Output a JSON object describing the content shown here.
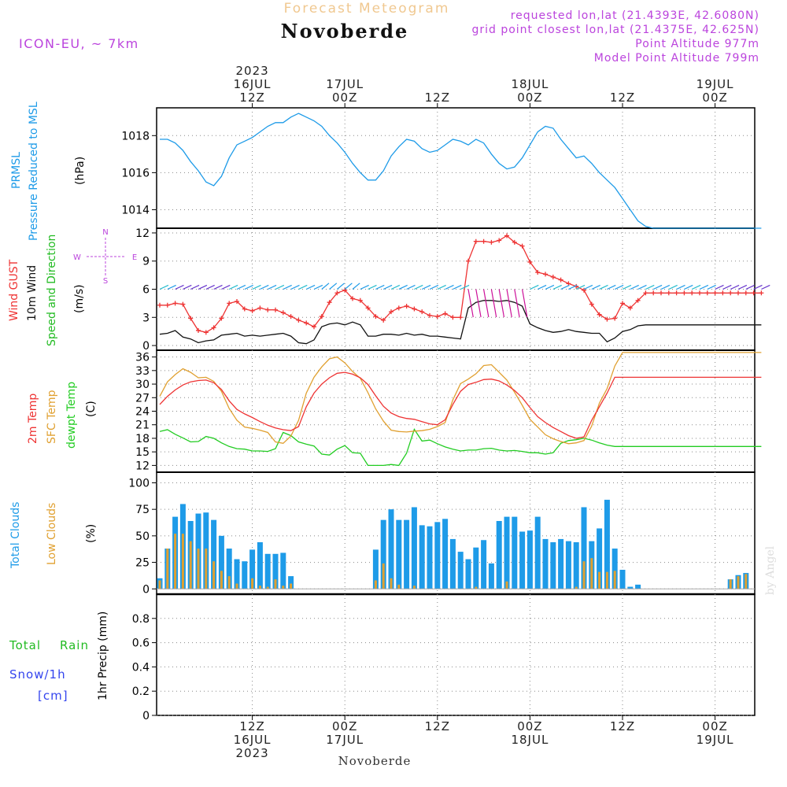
{
  "header": {
    "subtitle": "Forecast Meteogram",
    "title": "Novoberde",
    "model": "ICON-EU, ~ 7km",
    "info": [
      "requested lon,lat (21.4393E, 42.6080N)",
      "grid point closest lon,lat (21.4375E, 42.625N)",
      "Point Altitude 977m",
      "Model Point Altitude 799m"
    ],
    "footer_name": "Novoberde",
    "watermark": "by Angel"
  },
  "colors": {
    "pressure": "#1e9be8",
    "gust": "#ee3333",
    "wind": "#111111",
    "direction": "#22bb22",
    "temp2m": "#ee3333",
    "sfc": "#e0a030",
    "dew": "#22cc22",
    "total_clouds": "#1e9be8",
    "low_clouds": "#e0a030",
    "rain": "#22bb22",
    "snow": "#3344ee",
    "info": "#bb44dd",
    "subtitle": "#f0c890"
  },
  "time_axis": {
    "top_labels": [
      {
        "hour": 12,
        "lines": [
          "2023",
          "16JUL",
          "12Z"
        ]
      },
      {
        "hour": 24,
        "lines": [
          "17JUL",
          "00Z"
        ]
      },
      {
        "hour": 36,
        "lines": [
          "12Z"
        ]
      },
      {
        "hour": 48,
        "lines": [
          "18JUL",
          "00Z"
        ]
      },
      {
        "hour": 60,
        "lines": [
          "12Z"
        ]
      },
      {
        "hour": 72,
        "lines": [
          "19JUL",
          "00Z"
        ]
      }
    ],
    "bottom_labels": [
      {
        "hour": 12,
        "lines": [
          "12Z",
          "16JUL",
          "2023"
        ]
      },
      {
        "hour": 24,
        "lines": [
          "00Z",
          "17JUL"
        ]
      },
      {
        "hour": 36,
        "lines": [
          "12Z"
        ]
      },
      {
        "hour": 48,
        "lines": [
          "00Z",
          "18JUL"
        ]
      },
      {
        "hour": 60,
        "lines": [
          "12Z"
        ]
      },
      {
        "hour": 72,
        "lines": [
          "00Z",
          "19JUL"
        ]
      }
    ]
  },
  "panels": {
    "pressure": {
      "labels": [
        "PRMSL",
        "Pressure Reduced to MSL",
        "(hPa)"
      ],
      "ticks": [
        "1014",
        "1016",
        "1018"
      ]
    },
    "wind": {
      "labels": [
        "Wind GUST",
        "10m Wind",
        "Speed and Direction",
        "(m/s)"
      ],
      "ticks": [
        "0",
        "3",
        "6",
        "9",
        "12"
      ],
      "compass": [
        "N",
        "W",
        "E",
        "S"
      ]
    },
    "temp": {
      "labels": [
        "2m Temp",
        "SFC Temp",
        "dewpt Temp",
        "(C)"
      ],
      "ticks": [
        "12",
        "15",
        "18",
        "21",
        "24",
        "27",
        "30",
        "33",
        "36"
      ]
    },
    "clouds": {
      "labels": [
        "Total Clouds",
        "Low Clouds",
        "(%)"
      ],
      "ticks": [
        "0",
        "25",
        "50",
        "75",
        "100"
      ]
    },
    "precip": {
      "labels": [
        "Total",
        "Rain",
        "Snow/1h",
        "[cm]",
        "1hr Precip (mm)"
      ],
      "ticks": [
        "0",
        "0.2",
        "0.4",
        "0.6",
        "0.8"
      ]
    }
  },
  "chart_data": [
    {
      "type": "line",
      "title": "PRMSL Pressure Reduced to MSL",
      "ylabel": "hPa",
      "ylim": [
        1013,
        1019.5
      ],
      "x_hours": [
        0,
        1,
        2,
        3,
        4,
        5,
        6,
        7,
        8,
        9,
        10,
        11,
        12,
        13,
        14,
        15,
        16,
        17,
        18,
        19,
        20,
        21,
        22,
        23,
        24,
        25,
        26,
        27,
        28,
        29,
        30,
        31,
        32,
        33,
        34,
        35,
        36,
        37,
        38,
        39,
        40,
        41,
        42,
        43,
        44,
        45,
        46,
        47,
        48,
        49,
        50,
        51,
        52,
        53,
        54,
        55,
        56,
        57,
        58,
        59,
        60,
        61,
        62,
        63,
        64,
        65,
        66,
        67,
        68,
        69,
        70,
        71,
        72,
        73,
        74,
        75,
        76,
        77,
        78
      ],
      "series": [
        {
          "values": [
            1017.8,
            1017.8,
            1017.6,
            1017.2,
            1016.6,
            1016.1,
            1015.5,
            1015.3,
            1015.8,
            1016.8,
            1017.5,
            1017.7,
            1017.9,
            1018.2,
            1018.5,
            1018.7,
            1018.7,
            1019.0,
            1019.2,
            1019.0,
            1018.8,
            1018.5,
            1018.0,
            1017.6,
            1017.1,
            1016.5,
            1016.0,
            1015.6,
            1015.6,
            1016.1,
            1016.9,
            1017.4,
            1017.8,
            1017.7,
            1017.3,
            1017.1,
            1017.2,
            1017.5,
            1017.8,
            1017.7,
            1017.5,
            1017.8,
            1017.6,
            1017.0,
            1016.5,
            1016.2,
            1016.3,
            1016.8,
            1017.5,
            1018.2,
            1018.5,
            1018.4,
            1017.8,
            1017.3,
            1016.8,
            1016.9,
            1016.5,
            1016.0,
            1015.6,
            1015.2,
            1014.6,
            1014.0,
            1013.4,
            1013.1,
            1013.0,
            1013.0,
            1013.0,
            1013.0,
            1013.0,
            1013.0,
            1013.0,
            1013.0,
            1013.0,
            1013.0,
            1013.0,
            1013.0,
            1013.0,
            1013.0,
            1013.0
          ]
        }
      ]
    },
    {
      "type": "line",
      "title": "Wind GUST / 10m Wind",
      "ylabel": "m/s",
      "ylim": [
        -0.5,
        12.5
      ],
      "x_hours": [
        0,
        1,
        2,
        3,
        4,
        5,
        6,
        7,
        8,
        9,
        10,
        11,
        12,
        13,
        14,
        15,
        16,
        17,
        18,
        19,
        20,
        21,
        22,
        23,
        24,
        25,
        26,
        27,
        28,
        29,
        30,
        31,
        32,
        33,
        34,
        35,
        36,
        37,
        38,
        39,
        40,
        41,
        42,
        43,
        44,
        45,
        46,
        47,
        48,
        49,
        50,
        51,
        52,
        53,
        54,
        55,
        56,
        57,
        58,
        59,
        60,
        61,
        62,
        63,
        64,
        65,
        66,
        67,
        68,
        69,
        70,
        71,
        72,
        73,
        74,
        75,
        76,
        77,
        78
      ],
      "series": [
        {
          "name": "Wind GUST",
          "values": [
            4.3,
            4.3,
            4.5,
            4.4,
            2.9,
            1.6,
            1.4,
            1.9,
            2.9,
            4.5,
            4.7,
            3.9,
            3.7,
            4.0,
            3.8,
            3.8,
            3.5,
            3.1,
            2.7,
            2.4,
            2.0,
            3.1,
            4.6,
            5.6,
            5.9,
            5.0,
            4.8,
            4.0,
            3.1,
            2.7,
            3.6,
            4.0,
            4.2,
            3.9,
            3.6,
            3.2,
            3.1,
            3.4,
            3.0,
            3.0,
            9.0,
            11.1,
            11.1,
            11.0,
            11.2,
            11.7,
            11.0,
            10.6,
            8.9,
            7.8,
            7.6,
            7.3,
            7.0,
            6.6,
            6.3,
            5.9,
            4.4,
            3.3,
            2.8,
            2.9,
            4.5,
            4.0,
            4.8,
            5.6,
            5.6,
            5.6,
            5.6,
            5.6,
            5.6,
            5.6,
            5.6,
            5.6,
            5.6,
            5.6,
            5.6,
            5.6,
            5.6,
            5.6,
            5.6
          ]
        },
        {
          "name": "10m Wind",
          "values": [
            1.2,
            1.3,
            1.6,
            0.9,
            0.7,
            0.3,
            0.5,
            0.6,
            1.1,
            1.2,
            1.3,
            1.0,
            1.1,
            1.0,
            1.1,
            1.2,
            1.3,
            1.0,
            0.3,
            0.2,
            0.6,
            2.0,
            2.3,
            2.4,
            2.2,
            2.5,
            2.2,
            1.0,
            1.0,
            1.2,
            1.2,
            1.1,
            1.3,
            1.1,
            1.2,
            1.0,
            1.0,
            0.9,
            0.8,
            0.7,
            4.0,
            4.6,
            4.8,
            4.8,
            4.7,
            4.8,
            4.6,
            4.2,
            2.3,
            1.9,
            1.6,
            1.4,
            1.5,
            1.7,
            1.5,
            1.4,
            1.3,
            1.3,
            0.4,
            0.8,
            1.5,
            1.7,
            2.1,
            2.2,
            2.2,
            2.2,
            2.2,
            2.2,
            2.2,
            2.2,
            2.2,
            2.2,
            2.2,
            2.2,
            2.2,
            2.2,
            2.2,
            2.2,
            2.2
          ]
        }
      ]
    },
    {
      "type": "line",
      "title": "2m Temp / SFC Temp / dewpt Temp",
      "ylabel": "C",
      "ylim": [
        10.5,
        37.5
      ],
      "x_hours": [
        0,
        1,
        2,
        3,
        4,
        5,
        6,
        7,
        8,
        9,
        10,
        11,
        12,
        13,
        14,
        15,
        16,
        17,
        18,
        19,
        20,
        21,
        22,
        23,
        24,
        25,
        26,
        27,
        28,
        29,
        30,
        31,
        32,
        33,
        34,
        35,
        36,
        37,
        38,
        39,
        40,
        41,
        42,
        43,
        44,
        45,
        46,
        47,
        48,
        49,
        50,
        51,
        52,
        53,
        54,
        55,
        56,
        57,
        58,
        59,
        60,
        61,
        62,
        63,
        64,
        65,
        66,
        67,
        68,
        69,
        70,
        71,
        72,
        73,
        74,
        75,
        76,
        77,
        78
      ],
      "series": [
        {
          "name": "2m Temp",
          "values": [
            25.5,
            27.3,
            28.7,
            29.8,
            30.5,
            30.8,
            30.9,
            30.3,
            28.8,
            26.3,
            24.4,
            23.4,
            22.6,
            21.7,
            20.9,
            20.3,
            19.9,
            19.7,
            20.6,
            25.0,
            28.0,
            30.0,
            31.4,
            32.4,
            32.6,
            32.2,
            31.4,
            29.9,
            27.4,
            25.1,
            23.6,
            22.8,
            22.4,
            22.2,
            21.7,
            21.2,
            21.0,
            22.1,
            25.5,
            28.4,
            29.9,
            30.4,
            31.0,
            31.1,
            30.7,
            29.8,
            28.6,
            27.0,
            24.8,
            22.8,
            21.5,
            20.4,
            19.5,
            18.6,
            18.0,
            18.3,
            22.0,
            25.0,
            28.0,
            31.5,
            31.5,
            31.5,
            31.5,
            31.5,
            31.5,
            31.5,
            31.5,
            31.5,
            31.5,
            31.5,
            31.5,
            31.5,
            31.5,
            31.5,
            31.5,
            31.5,
            31.5,
            31.5,
            31.5
          ]
        },
        {
          "name": "SFC Temp",
          "values": [
            27.3,
            30.5,
            32.1,
            33.4,
            32.6,
            31.4,
            31.5,
            30.6,
            28.4,
            24.6,
            22.0,
            20.5,
            20.2,
            19.8,
            19.3,
            17.2,
            16.9,
            18.5,
            22.0,
            28.0,
            31.5,
            33.8,
            35.6,
            36.0,
            34.7,
            32.8,
            31.3,
            28.1,
            24.5,
            21.8,
            19.8,
            19.5,
            19.4,
            19.6,
            19.7,
            20.0,
            20.6,
            21.5,
            26.5,
            30.1,
            31.1,
            32.3,
            34.1,
            34.3,
            32.6,
            30.9,
            28.2,
            25.3,
            22.2,
            20.5,
            18.8,
            17.9,
            17.3,
            16.8,
            17.0,
            17.5,
            20.7,
            25.8,
            29.0,
            34.0,
            37.0,
            37.0,
            37.0,
            37.0,
            37.0,
            37.0,
            37.0,
            37.0,
            37.0,
            37.0,
            37.0,
            37.0,
            37.0,
            37.0,
            37.0,
            37.0,
            37.0,
            37.0,
            37.0
          ]
        },
        {
          "name": "dewpt Temp",
          "values": [
            19.5,
            19.9,
            18.9,
            18.1,
            17.2,
            17.3,
            18.4,
            18.0,
            17.0,
            16.2,
            15.7,
            15.6,
            15.2,
            15.2,
            15.1,
            15.7,
            19.3,
            18.6,
            17.2,
            16.7,
            16.3,
            14.5,
            14.3,
            15.6,
            16.4,
            14.8,
            14.7,
            12.0,
            12.0,
            12.0,
            12.2,
            12.0,
            14.7,
            20.0,
            17.4,
            17.6,
            16.8,
            16.1,
            15.6,
            15.2,
            15.4,
            15.4,
            15.7,
            15.8,
            15.4,
            15.2,
            15.3,
            15.1,
            14.8,
            14.8,
            14.5,
            14.8,
            16.9,
            17.5,
            17.7,
            18.0,
            17.6,
            17.0,
            16.5,
            16.2,
            16.2,
            16.2,
            16.2,
            16.2,
            16.2,
            16.2,
            16.2,
            16.2,
            16.2,
            16.2,
            16.2,
            16.2,
            16.2,
            16.2,
            16.2,
            16.2,
            16.2,
            16.2,
            16.2
          ]
        }
      ]
    },
    {
      "type": "bar",
      "title": "Total Clouds / Low Clouds",
      "ylabel": "%",
      "ylim": [
        -5,
        110
      ],
      "x_hours": [
        0,
        1,
        2,
        3,
        4,
        5,
        6,
        7,
        8,
        9,
        10,
        11,
        12,
        13,
        14,
        15,
        16,
        17,
        18,
        19,
        20,
        21,
        22,
        23,
        24,
        25,
        26,
        27,
        28,
        29,
        30,
        31,
        32,
        33,
        34,
        35,
        36,
        37,
        38,
        39,
        40,
        41,
        42,
        43,
        44,
        45,
        46,
        47,
        48,
        49,
        50,
        51,
        52,
        53,
        54,
        55,
        56,
        57,
        58,
        59,
        60,
        61,
        62,
        63,
        64,
        65,
        66,
        67,
        68,
        69,
        70,
        71,
        72,
        73,
        74,
        75,
        76,
        77,
        78
      ],
      "series": [
        {
          "name": "Total Clouds",
          "values": [
            10,
            38,
            68,
            80,
            64,
            71,
            72,
            65,
            50,
            38,
            28,
            26,
            37,
            44,
            33,
            33,
            34,
            12,
            0,
            0,
            0,
            0,
            0,
            0,
            0,
            0,
            0,
            0,
            37,
            65,
            75,
            65,
            65,
            77,
            60,
            59,
            63,
            66,
            47,
            35,
            28,
            39,
            46,
            24,
            64,
            68,
            68,
            54,
            55,
            68,
            47,
            44,
            47,
            45,
            44,
            77,
            45,
            57,
            84,
            38,
            18,
            2,
            4,
            0,
            0,
            0,
            0,
            0,
            0,
            0,
            0,
            0,
            0,
            0,
            9,
            13,
            15,
            0,
            0
          ]
        },
        {
          "name": "Low Clouds",
          "values": [
            8,
            38,
            52,
            52,
            45,
            38,
            38,
            26,
            17,
            12,
            5,
            0,
            10,
            3,
            2,
            9,
            3,
            5,
            0,
            0,
            0,
            0,
            0,
            0,
            0,
            0,
            0,
            0,
            8,
            24,
            10,
            4,
            0,
            3,
            0,
            0,
            0,
            0,
            0,
            0,
            0,
            2,
            0,
            0,
            0,
            7,
            0,
            0,
            0,
            0,
            0,
            0,
            0,
            0,
            2,
            26,
            29,
            16,
            16,
            17,
            0,
            0,
            0,
            0,
            0,
            0,
            0,
            0,
            0,
            0,
            0,
            0,
            0,
            0,
            9,
            12,
            14,
            0,
            0
          ]
        }
      ]
    },
    {
      "type": "bar",
      "title": "1hr Precip",
      "ylabel": "1hr Precip (mm)",
      "ylim": [
        0,
        1
      ],
      "series": [
        {
          "name": "Total Rain",
          "values": []
        },
        {
          "name": "Snow/1h",
          "values": []
        }
      ]
    }
  ]
}
